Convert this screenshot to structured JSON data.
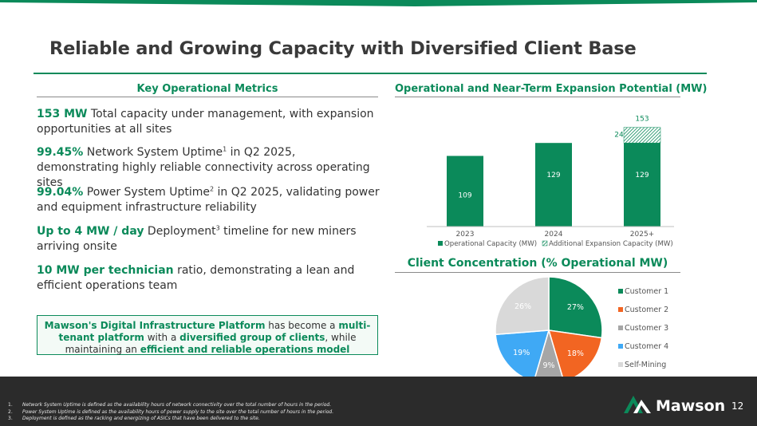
{
  "slide": {
    "title": "Reliable and Growing Capacity with Diversified Client Base",
    "page_number": "12",
    "logo_text": "Mawson",
    "accent_color": "#0b8a5a"
  },
  "left": {
    "heading": "Key Operational Metrics",
    "metrics": [
      {
        "highlight": "153 MW",
        "text": " Total capacity under management, with expansion opportunities at all sites"
      },
      {
        "highlight": "99.45%",
        "text_a": " Network System Uptime",
        "sup": "1",
        "text_b": " in Q2 2025, demonstrating highly reliable connectivity across operating sites"
      },
      {
        "highlight": "99.04%",
        "text_a": " Power System Uptime",
        "sup": "2",
        "text_b": " in Q2 2025, validating power and equipment infrastructure reliability"
      },
      {
        "highlight": "Up to 4 MW / day",
        "text_a": " Deployment",
        "sup": "3",
        "text_b": " timeline for new miners arriving onsite"
      },
      {
        "highlight": "10 MW per technician",
        "text": " ratio, demonstrating a lean and efficient operations team"
      }
    ],
    "callout": {
      "bold1": "Mawson's Digital Infrastructure Platform",
      "text1": " has become a ",
      "bold2": "multi-tenant platform",
      "text2": " with a ",
      "bold3": "diversified group of clients",
      "text3": ", while maintaining an ",
      "bold4": "efficient and reliable operations model"
    }
  },
  "footnotes": [
    {
      "num": "1.",
      "text": "Network System Uptime is defined as the availability hours of network connectivity over the total number of hours in the period."
    },
    {
      "num": "2.",
      "text": "Power System Uptime is defined as the availability hours of power supply to the site over the total number of hours in the period."
    },
    {
      "num": "3.",
      "text": "Deployment is defined as the racking and energizing of ASICs that have been delivered to the site."
    }
  ],
  "chart_data": [
    {
      "type": "bar",
      "title": "Operational and Near-Term Expansion Potential (MW)",
      "categories": [
        "2023",
        "2024",
        "2025+"
      ],
      "series": [
        {
          "name": "Operational Capacity (MW)",
          "values": [
            109,
            129,
            129
          ],
          "color": "#0b8a5a"
        },
        {
          "name": "Additional Expansion Capacity (MW)",
          "values": [
            0,
            0,
            24
          ],
          "color": "#0b8a5a",
          "pattern": "hatched"
        }
      ],
      "totals": [
        "",
        "",
        "153"
      ],
      "expansion_labels": [
        "",
        "",
        "24"
      ],
      "ylim": [
        0,
        160
      ]
    },
    {
      "type": "pie",
      "title": "Client Concentration (% Operational MW)",
      "labels": [
        "Customer 1",
        "Customer 2",
        "Customer 3",
        "Customer 4",
        "Self-Mining"
      ],
      "values": [
        27,
        18,
        9,
        19,
        26
      ],
      "display": [
        "27%",
        "18%",
        "9%",
        "19%",
        "26%"
      ],
      "colors": [
        "#0b8a5a",
        "#f26522",
        "#a6a6a6",
        "#3fa9f5",
        "#d9d9d9"
      ],
      "legend": "right"
    }
  ]
}
